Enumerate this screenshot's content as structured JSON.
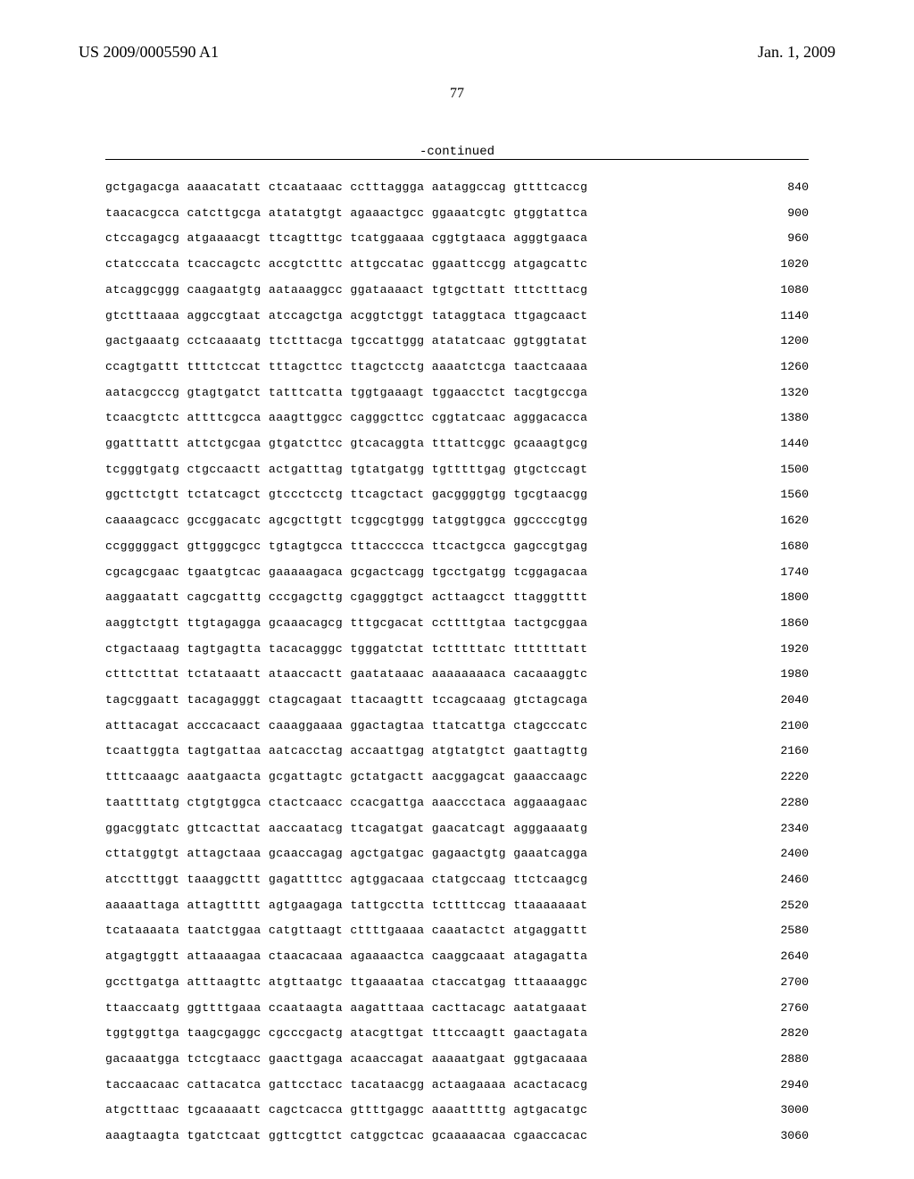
{
  "header": {
    "left": "US 2009/0005590 A1",
    "right": "Jan. 1, 2009"
  },
  "page_number": "77",
  "continued_label": "-continued",
  "sequence": {
    "rows": [
      {
        "seq": "gctgagacga aaaacatatt ctcaataaac cctttaggga aataggccag gttttcaccg",
        "num": "840"
      },
      {
        "seq": "taacacgcca catcttgcga atatatgtgt agaaactgcc ggaaatcgtc gtggtattca",
        "num": "900"
      },
      {
        "seq": "ctccagagcg atgaaaacgt ttcagtttgc tcatggaaaa cggtgtaaca agggtgaaca",
        "num": "960"
      },
      {
        "seq": "ctatcccata tcaccagctc accgtctttc attgccatac ggaattccgg atgagcattc",
        "num": "1020"
      },
      {
        "seq": "atcaggcggg caagaatgtg aataaaggcc ggataaaact tgtgcttatt tttctttacg",
        "num": "1080"
      },
      {
        "seq": "gtctttaaaa aggccgtaat atccagctga acggtctggt tataggtaca ttgagcaact",
        "num": "1140"
      },
      {
        "seq": "gactgaaatg cctcaaaatg ttctttacga tgccattggg atatatcaac ggtggtatat",
        "num": "1200"
      },
      {
        "seq": "ccagtgattt ttttctccat tttagcttcc ttagctcctg aaaatctcga taactcaaaa",
        "num": "1260"
      },
      {
        "seq": "aatacgcccg gtagtgatct tatttcatta tggtgaaagt tggaacctct tacgtgccga",
        "num": "1320"
      },
      {
        "seq": "tcaacgtctc attttcgcca aaagttggcc cagggcttcc cggtatcaac agggacacca",
        "num": "1380"
      },
      {
        "seq": "ggatttattt attctgcgaa gtgatcttcc gtcacaggta tttattcggc gcaaagtgcg",
        "num": "1440"
      },
      {
        "seq": "tcgggtgatg ctgccaactt actgatttag tgtatgatgg tgtttttgag gtgctccagt",
        "num": "1500"
      },
      {
        "seq": "ggcttctgtt tctatcagct gtccctcctg ttcagctact gacggggtgg tgcgtaacgg",
        "num": "1560"
      },
      {
        "seq": "caaaagcacc gccggacatc agcgcttgtt tcggcgtggg tatggtggca ggccccgtgg",
        "num": "1620"
      },
      {
        "seq": "ccgggggact gttgggcgcc tgtagtgcca tttaccccca ttcactgcca gagccgtgag",
        "num": "1680"
      },
      {
        "seq": "cgcagcgaac tgaatgtcac gaaaaagaca gcgactcagg tgcctgatgg tcggagacaa",
        "num": "1740"
      },
      {
        "seq": "aaggaatatt cagcgatttg cccgagcttg cgagggtgct acttaagcct ttagggtttt",
        "num": "1800"
      },
      {
        "seq": "aaggtctgtt ttgtagagga gcaaacagcg tttgcgacat ccttttgtaa tactgcggaa",
        "num": "1860"
      },
      {
        "seq": "ctgactaaag tagtgagtta tacacagggc tgggatctat tctttttatc tttttttatt",
        "num": "1920"
      },
      {
        "seq": "ctttctttat tctataaatt ataaccactt gaatataaac aaaaaaaaca cacaaaggtc",
        "num": "1980"
      },
      {
        "seq": "tagcggaatt tacagagggt ctagcagaat ttacaagttt tccagcaaag gtctagcaga",
        "num": "2040"
      },
      {
        "seq": "atttacagat acccacaact caaaggaaaa ggactagtaa ttatcattga ctagcccatc",
        "num": "2100"
      },
      {
        "seq": "tcaattggta tagtgattaa aatcacctag accaattgag atgtatgtct gaattagttg",
        "num": "2160"
      },
      {
        "seq": "ttttcaaagc aaatgaacta gcgattagtc gctatgactt aacggagcat gaaaccaagc",
        "num": "2220"
      },
      {
        "seq": "taattttatg ctgtgtggca ctactcaacc ccacgattga aaaccctaca aggaaagaac",
        "num": "2280"
      },
      {
        "seq": "ggacggtatc gttcacttat aaccaatacg ttcagatgat gaacatcagt agggaaaatg",
        "num": "2340"
      },
      {
        "seq": "cttatggtgt attagctaaa gcaaccagag agctgatgac gagaactgtg gaaatcagga",
        "num": "2400"
      },
      {
        "seq": "atcctttggt taaaggcttt gagattttcc agtggacaaa ctatgccaag ttctcaagcg",
        "num": "2460"
      },
      {
        "seq": "aaaaattaga attagttttt agtgaagaga tattgcctta tcttttccag ttaaaaaaat",
        "num": "2520"
      },
      {
        "seq": "tcataaaata taatctggaa catgttaagt cttttgaaaa caaatactct atgaggattt",
        "num": "2580"
      },
      {
        "seq": "atgagtggtt attaaaagaa ctaacacaaa agaaaactca caaggcaaat atagagatta",
        "num": "2640"
      },
      {
        "seq": "gccttgatga atttaagttc atgttaatgc ttgaaaataa ctaccatgag tttaaaaggc",
        "num": "2700"
      },
      {
        "seq": "ttaaccaatg ggttttgaaa ccaataagta aagatttaaa cacttacagc aatatgaaat",
        "num": "2760"
      },
      {
        "seq": "tggtggttga taagcgaggc cgcccgactg atacgttgat tttccaagtt gaactagata",
        "num": "2820"
      },
      {
        "seq": "gacaaatgga tctcgtaacc gaacttgaga acaaccagat aaaaatgaat ggtgacaaaa",
        "num": "2880"
      },
      {
        "seq": "taccaacaac cattacatca gattcctacc tacataacgg actaagaaaa acactacacg",
        "num": "2940"
      },
      {
        "seq": "atgctttaac tgcaaaaatt cagctcacca gttttgaggc aaaatttttg agtgacatgc",
        "num": "3000"
      },
      {
        "seq": "aaagtaagta tgatctcaat ggttcgttct catggctcac gcaaaaacaa cgaaccacac",
        "num": "3060"
      }
    ]
  }
}
